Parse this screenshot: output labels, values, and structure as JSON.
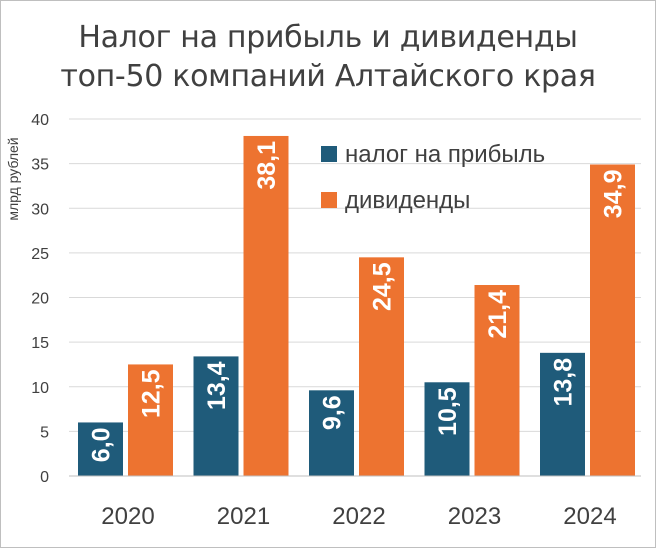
{
  "chart_data": {
    "type": "bar",
    "title_line1": "Налог на прибыль и дивиденды",
    "title_line2": "топ-50 компаний Алтайского края",
    "ylabel": "млрд рублей",
    "xlabel": "",
    "categories": [
      "2020",
      "2021",
      "2022",
      "2023",
      "2024"
    ],
    "series": [
      {
        "name": "налог на прибыль",
        "color": "#1f5b7a",
        "values": [
          6.0,
          13.4,
          9.6,
          10.5,
          13.8
        ],
        "labels": [
          "6,0",
          "13,4",
          "9,6",
          "10,5",
          "13,8"
        ]
      },
      {
        "name": "дивиденды",
        "color": "#ed7330",
        "values": [
          12.5,
          38.1,
          24.5,
          21.4,
          34.9
        ],
        "labels": [
          "12,5",
          "38,1",
          "24,5",
          "21,4",
          "34,9"
        ]
      }
    ],
    "ylim": [
      0,
      40
    ],
    "yticks": [
      "0",
      "5",
      "10",
      "15",
      "20",
      "25",
      "30",
      "35",
      "40"
    ],
    "grid": true,
    "legend_position": "top-center"
  }
}
